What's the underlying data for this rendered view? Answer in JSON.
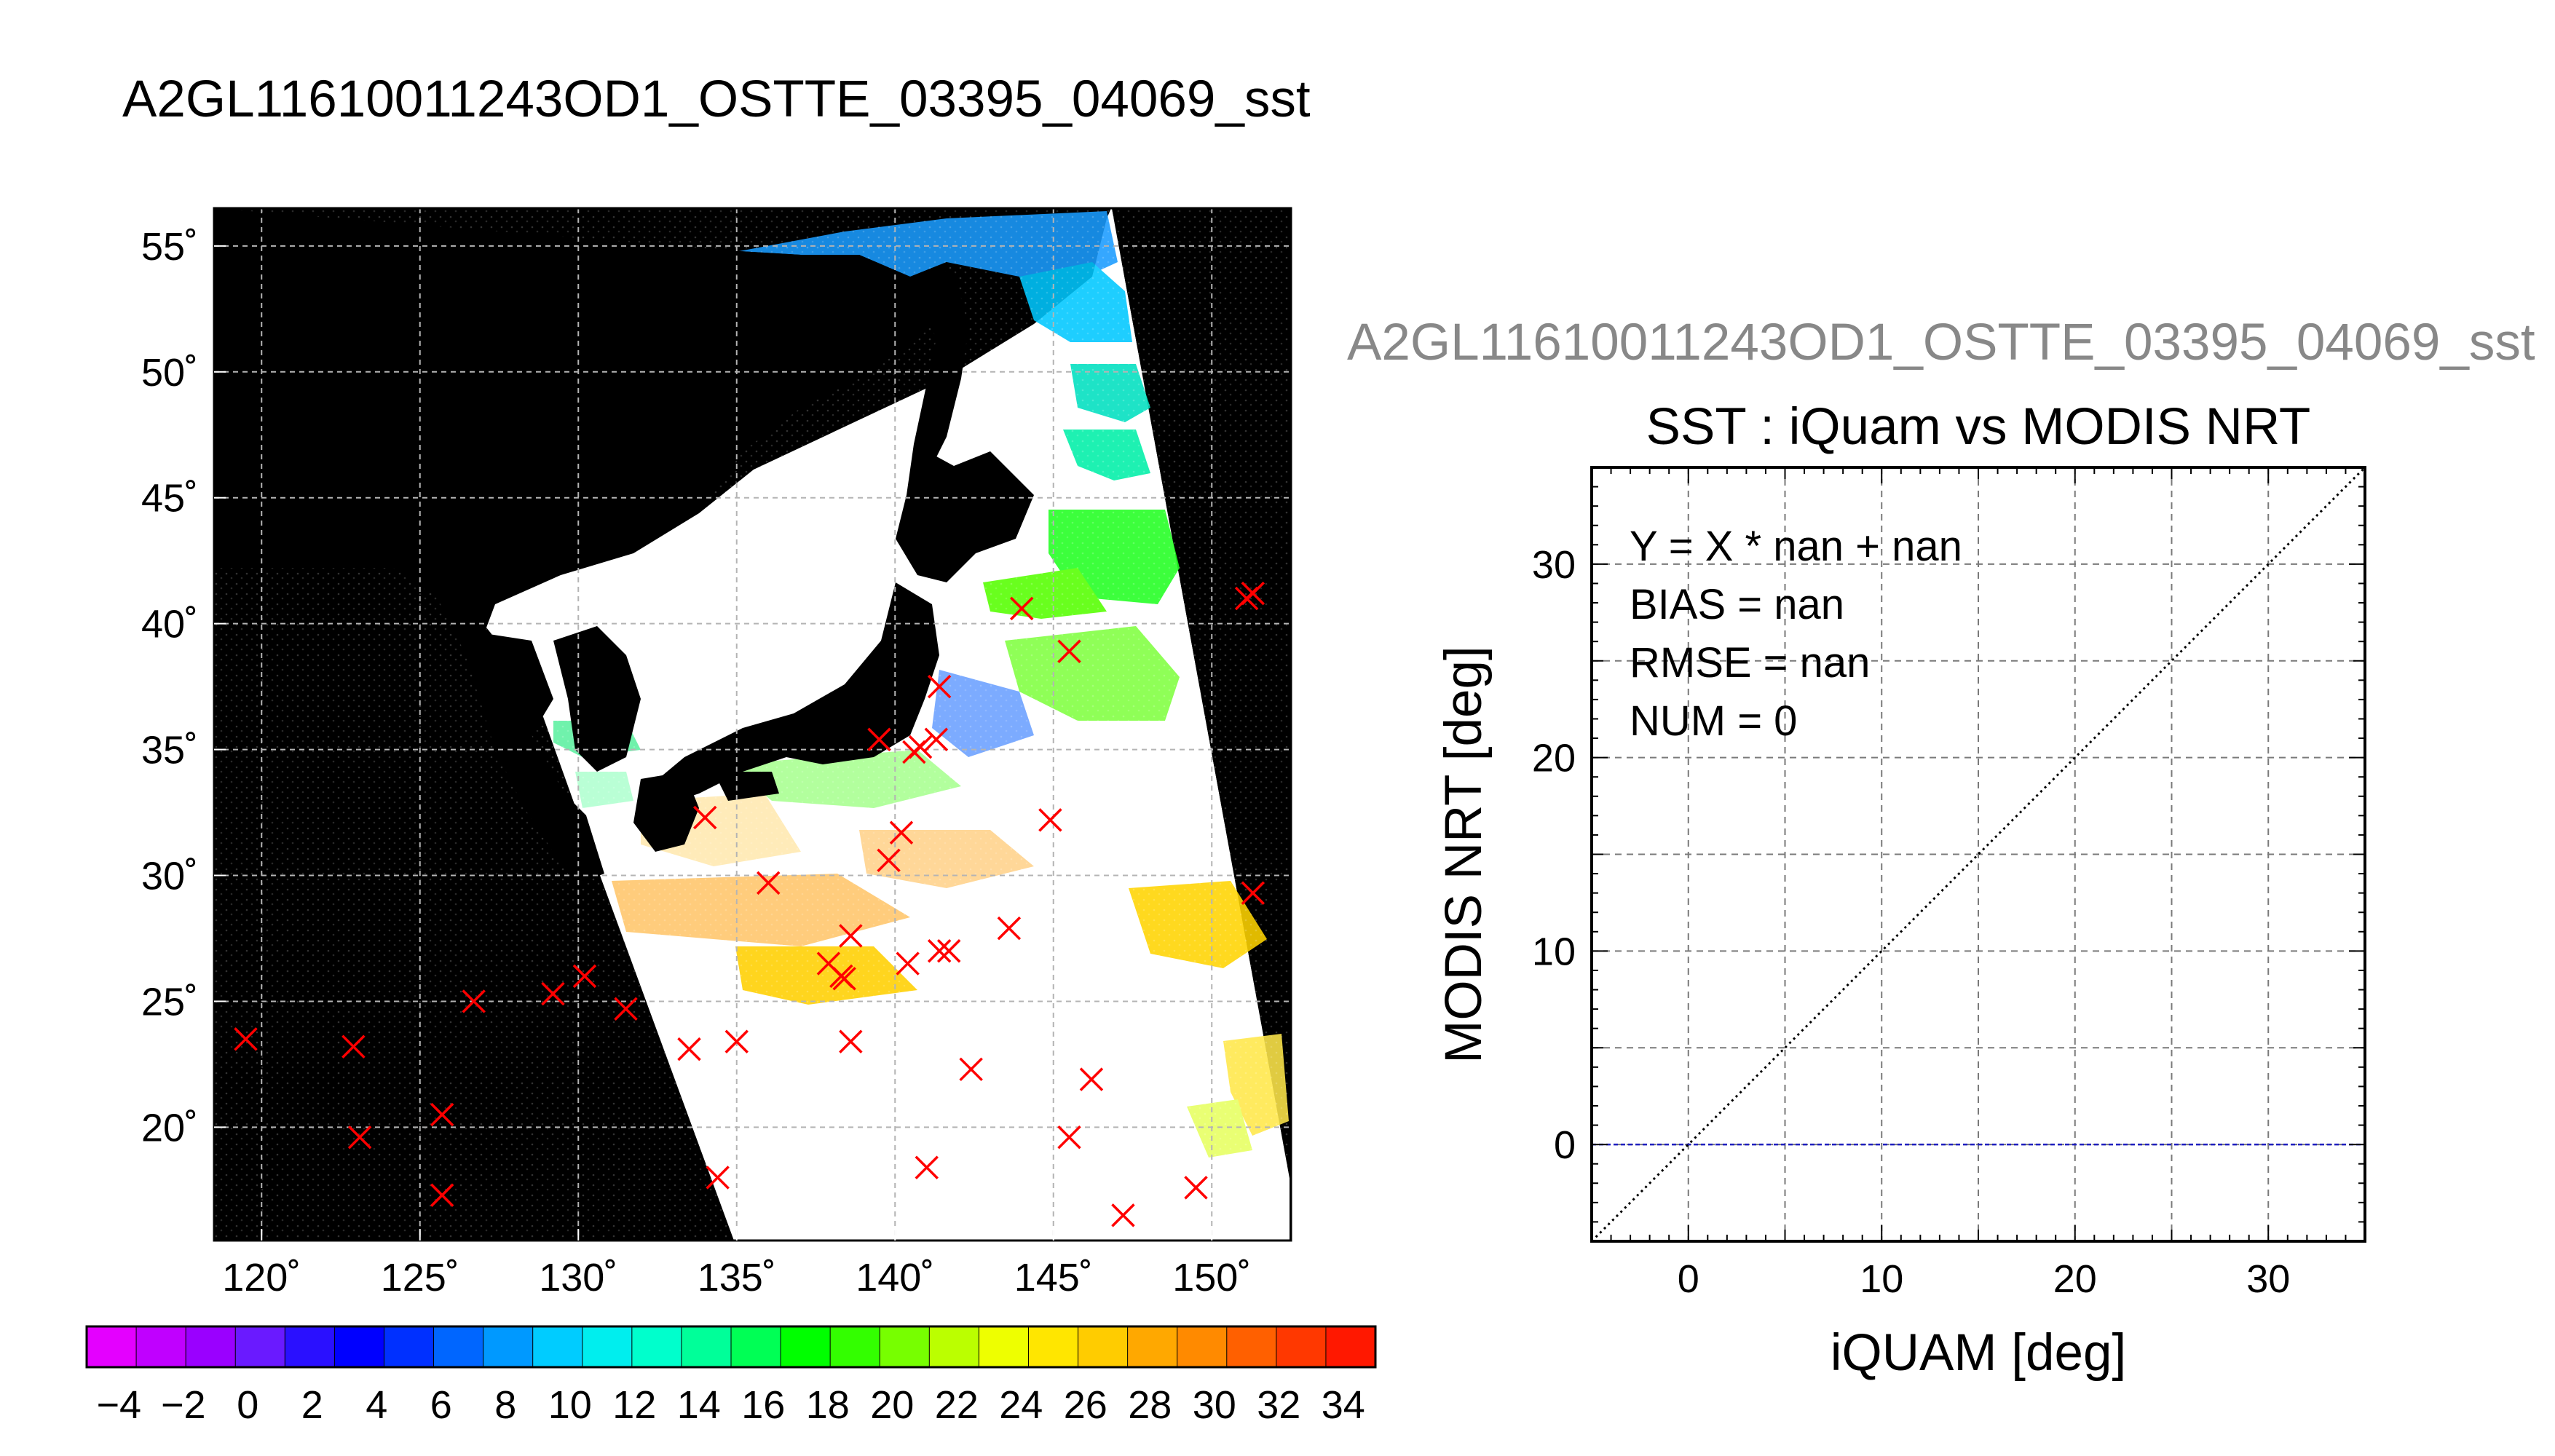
{
  "figure_title": "A2GL11610011243OD1_OSTTE_03395_04069_sst",
  "chart_data": [
    {
      "type": "scatter",
      "subtype": "map",
      "title": "",
      "x": [
        119.5,
        122.9,
        123.1,
        125.7,
        125.7,
        126.7,
        129.2,
        130.2,
        131.5,
        133.5,
        134.0,
        134.4,
        135.0,
        136.0,
        137.9,
        138.3,
        138.4,
        138.6,
        138.6,
        139.5,
        139.8,
        140.2,
        140.4,
        140.6,
        140.8,
        141.0,
        141.3,
        141.4,
        141.4,
        141.7,
        142.4,
        143.6,
        144.0,
        144.9,
        145.5,
        145.5,
        146.2,
        147.2,
        149.5,
        151.1,
        151.3,
        151.3
      ],
      "y": [
        23.5,
        23.2,
        19.6,
        20.5,
        17.3,
        25.0,
        25.3,
        26.0,
        24.7,
        23.1,
        32.3,
        18.0,
        23.4,
        29.7,
        26.5,
        26.0,
        25.9,
        27.6,
        23.4,
        35.4,
        30.6,
        31.7,
        26.5,
        34.9,
        35.1,
        18.4,
        35.4,
        37.5,
        27.0,
        27.0,
        22.3,
        27.9,
        40.6,
        32.2,
        19.6,
        38.9,
        21.9,
        16.5,
        17.6,
        41.0,
        41.2,
        29.3
      ],
      "series_name": "iQuam",
      "marker": "x",
      "marker_color": "#ff0000",
      "xlim": [
        118.5,
        152.5
      ],
      "ylim": [
        15.5,
        56.5
      ],
      "xticks": [
        120,
        125,
        130,
        135,
        140,
        145,
        150
      ],
      "yticks": [
        20,
        25,
        30,
        35,
        40,
        45,
        50,
        55
      ],
      "xtick_labels": [
        "120˚",
        "125˚",
        "130˚",
        "135˚",
        "140˚",
        "145˚",
        "150˚"
      ],
      "ytick_labels": [
        "20˚",
        "25˚",
        "30˚",
        "35˚",
        "40˚",
        "45˚",
        "50˚",
        "55˚"
      ],
      "grid": true,
      "background_color": "#000000",
      "swath_fill": "#ffffff",
      "colorbar": {
        "min": -5,
        "max": 35,
        "step": 2,
        "tick_values": [
          -4,
          -2,
          0,
          2,
          4,
          6,
          8,
          10,
          12,
          14,
          16,
          18,
          20,
          22,
          24,
          26,
          28,
          30,
          32,
          34
        ],
        "tick_labels": [
          "−4",
          "−2",
          "0",
          "2",
          "4",
          "6",
          "8",
          "10",
          "12",
          "14",
          "16",
          "18",
          "20",
          "22",
          "24",
          "26",
          "28",
          "30",
          "32",
          "34"
        ],
        "colors": [
          "#e400ff",
          "#c000ff",
          "#9a00ff",
          "#6a1aff",
          "#2a10ff",
          "#0000ff",
          "#0030ff",
          "#0066ff",
          "#0099ff",
          "#00ccff",
          "#00eeee",
          "#00ffcc",
          "#00ff99",
          "#00ff55",
          "#00ff00",
          "#33ff00",
          "#77ff00",
          "#bbff00",
          "#eeff00",
          "#ffe600",
          "#ffcc00",
          "#ffa800",
          "#ff8a00",
          "#ff6000",
          "#ff3800",
          "#ff1800"
        ]
      }
    },
    {
      "type": "scatter",
      "subtitle": "A2GL11610011243OD1_OSTTE_03395_04069_sst",
      "title": "SST : iQuam vs MODIS NRT",
      "xlabel": "iQUAM [deg]",
      "ylabel": "MODIS NRT [deg]",
      "xlim": [
        -5,
        35
      ],
      "ylim": [
        -5,
        35
      ],
      "xticks": [
        0,
        10,
        20,
        30
      ],
      "yticks": [
        0,
        10,
        20,
        30
      ],
      "grid": true,
      "points": [],
      "reference_line": {
        "style": "dotted",
        "color": "#000000",
        "x": [
          -5,
          35
        ],
        "y": [
          -5,
          35
        ]
      },
      "zero_line": {
        "style": "dashed",
        "color": "#0000cc",
        "y": 0
      },
      "stats": [
        "Y = X * nan + nan",
        "BIAS = nan",
        "RMSE = nan",
        "NUM = 0"
      ]
    }
  ]
}
